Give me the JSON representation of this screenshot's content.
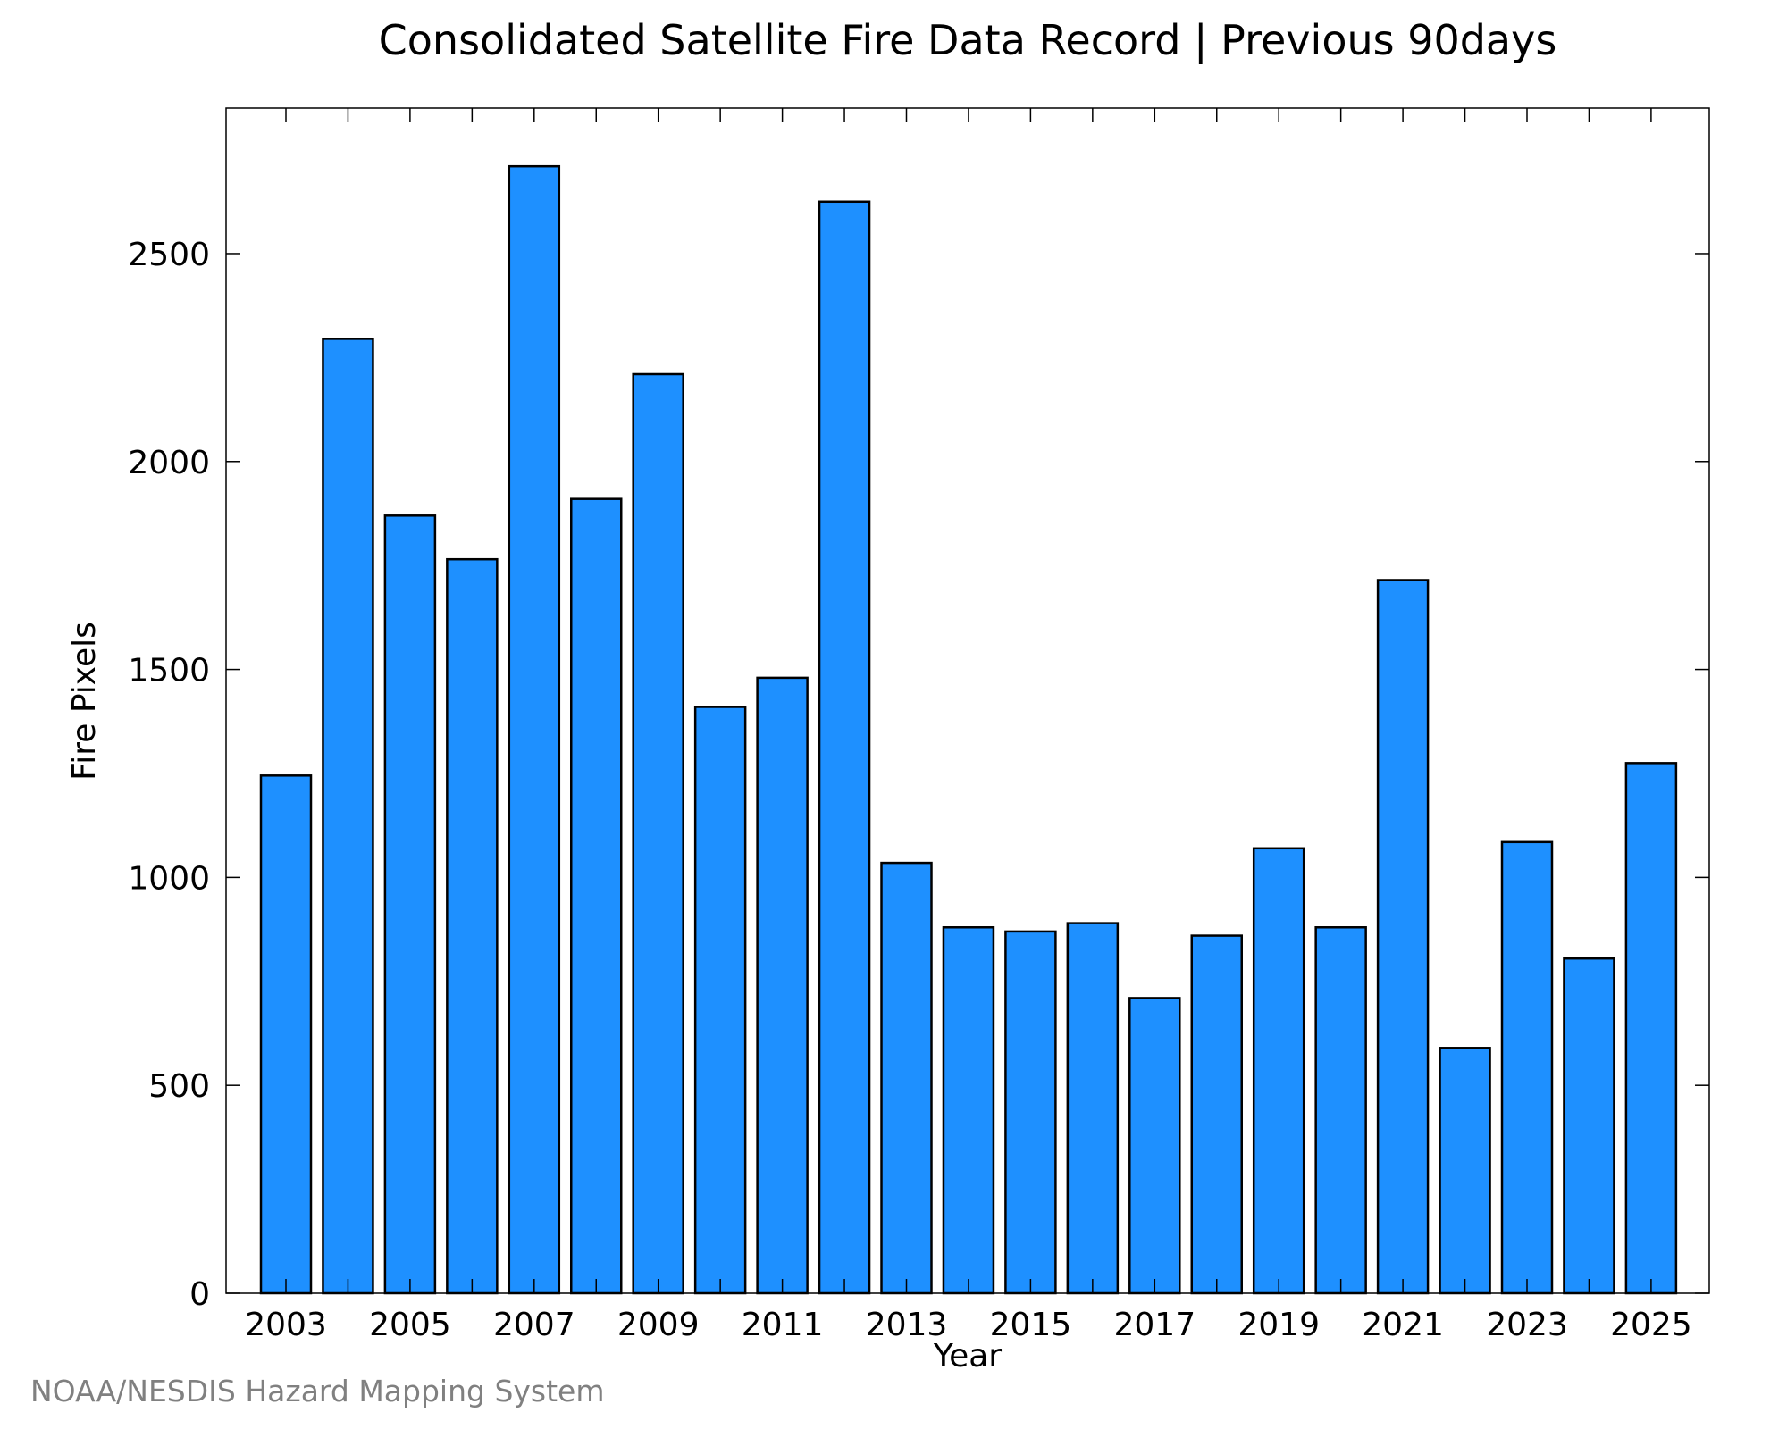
{
  "chart_data": {
    "type": "bar",
    "title": "Consolidated Satellite Fire Data Record | Previous 90days",
    "xlabel": "Year",
    "ylabel": "Fire Pixels",
    "categories": [
      "2003",
      "2004",
      "2005",
      "2006",
      "2007",
      "2008",
      "2009",
      "2010",
      "2011",
      "2012",
      "2013",
      "2014",
      "2015",
      "2016",
      "2017",
      "2018",
      "2019",
      "2020",
      "2021",
      "2022",
      "2023",
      "2024",
      "2025"
    ],
    "values": [
      1245,
      2295,
      1870,
      1765,
      2710,
      1910,
      2210,
      1410,
      1480,
      2625,
      1035,
      880,
      870,
      890,
      710,
      860,
      1070,
      880,
      1715,
      590,
      1085,
      805,
      1275
    ],
    "x_tick_labels": [
      "2003",
      "2005",
      "2007",
      "2009",
      "2011",
      "2013",
      "2015",
      "2017",
      "2019",
      "2021",
      "2023",
      "2025"
    ],
    "y_tick_labels": [
      "0",
      "500",
      "1000",
      "1500",
      "2000",
      "2500"
    ],
    "ylim": [
      0,
      2850
    ],
    "grid": false,
    "bar_color": "#1e90ff",
    "edge_color": "#000000"
  },
  "footer": {
    "credit": "NOAA/NESDIS Hazard Mapping System"
  }
}
